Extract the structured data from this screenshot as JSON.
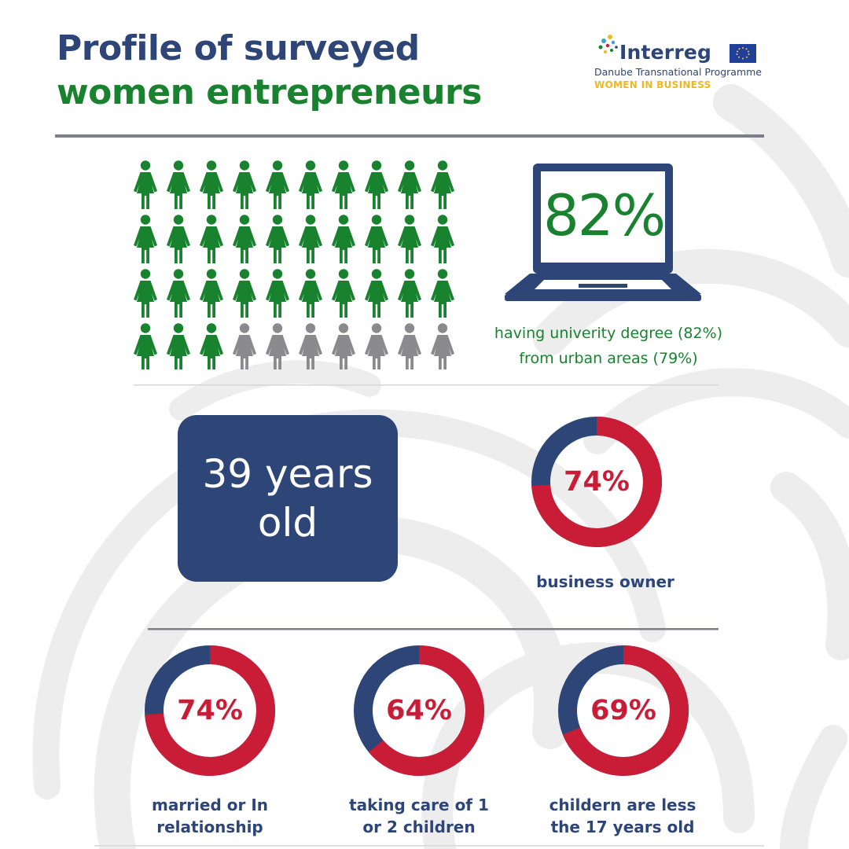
{
  "title": {
    "line1": "Profile of surveyed",
    "line2": "women entrepreneurs"
  },
  "logo": {
    "brand": "Interreg",
    "programme": "Danube Transnational Programme",
    "project": "WOMEN IN BUSINESS",
    "icon": "eu-flag-icon"
  },
  "colors": {
    "navy": "#2d4677",
    "green": "#19822f",
    "red": "#c91d37",
    "gray": "#8a8a8e",
    "gold": "#f0b81c"
  },
  "chart_data": [
    {
      "type": "pictogram",
      "total_icons": 40,
      "highlighted_icons": 33,
      "rows": 4,
      "columns": 10,
      "icon": "woman-icon"
    },
    {
      "type": "stat",
      "value": "82%",
      "caption": [
        "having univerity degree (82%)",
        "from urban areas (79%)"
      ],
      "icon": "laptop-icon"
    },
    {
      "type": "stat",
      "value_lines": [
        "39 years",
        "old"
      ]
    },
    {
      "type": "pie",
      "donuts": [
        {
          "value": 74,
          "label_text": "74%",
          "caption": [
            "business owner"
          ]
        },
        {
          "value": 74,
          "label_text": "74%",
          "caption": [
            "married or In",
            "relationship"
          ]
        },
        {
          "value": 64,
          "label_text": "64%",
          "caption": [
            "taking care of 1",
            "or 2 children"
          ]
        },
        {
          "value": 69,
          "label_text": "69%",
          "caption": [
            "childern are less",
            "the 17 years old"
          ]
        }
      ]
    }
  ]
}
